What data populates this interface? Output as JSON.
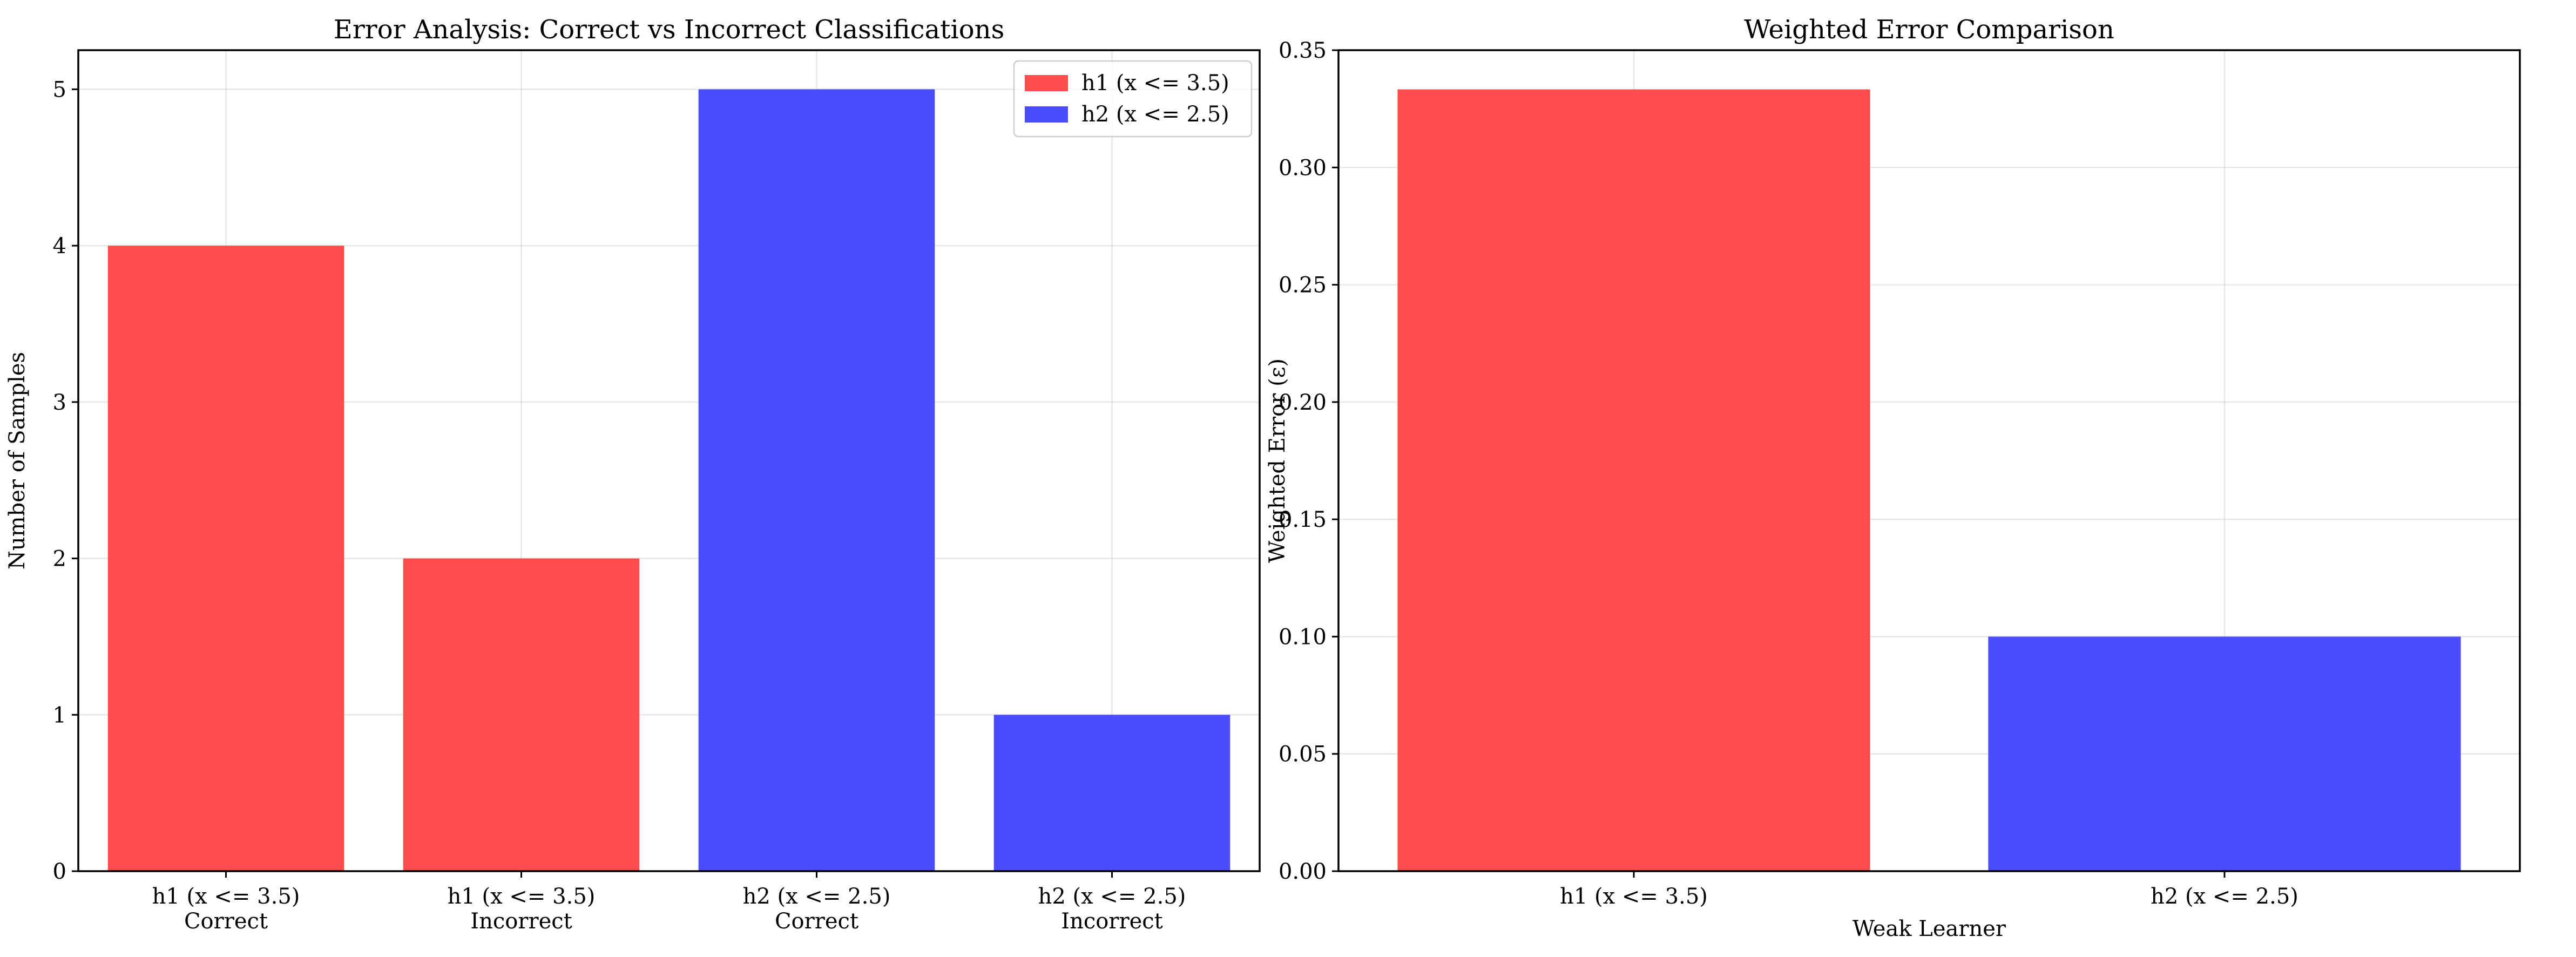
{
  "colors": {
    "h1": "#ff4c4c",
    "h2": "#4c4cff"
  },
  "chart_data": [
    {
      "type": "bar",
      "title": "Error Analysis: Correct vs Incorrect Classifications",
      "xlabel": "",
      "ylabel": "Number of Samples",
      "categories": [
        [
          "h1 (x <= 3.5)",
          "Correct"
        ],
        [
          "h1 (x <= 3.5)",
          "Incorrect"
        ],
        [
          "h2 (x <= 2.5)",
          "Correct"
        ],
        [
          "h2 (x <= 2.5)",
          "Incorrect"
        ]
      ],
      "values": [
        4,
        2,
        5,
        1
      ],
      "bar_colors": [
        "#ff4c4c",
        "#ff4c4c",
        "#4c4cff",
        "#4c4cff"
      ],
      "ylim": [
        0,
        5.25
      ],
      "yticks": [
        "0",
        "1",
        "2",
        "3",
        "4",
        "5"
      ],
      "grid": true,
      "legend": {
        "placement": "top-right",
        "entries": [
          {
            "name": "h1 (x <= 3.5)",
            "color": "#ff4c4c"
          },
          {
            "name": "h2 (x <= 2.5)",
            "color": "#4c4cff"
          }
        ]
      }
    },
    {
      "type": "bar",
      "title": "Weighted Error Comparison",
      "xlabel": "Weak Learner",
      "ylabel": "Weighted Error (ε)",
      "categories": [
        [
          "h1 (x <= 3.5)"
        ],
        [
          "h2 (x <= 2.5)"
        ]
      ],
      "values": [
        0.3333,
        0.1
      ],
      "bar_colors": [
        "#ff4c4c",
        "#4c4cff"
      ],
      "ylim": [
        0,
        0.35
      ],
      "yticks": [
        "0.00",
        "0.05",
        "0.10",
        "0.15",
        "0.20",
        "0.25",
        "0.30",
        "0.35"
      ],
      "grid": true
    }
  ]
}
